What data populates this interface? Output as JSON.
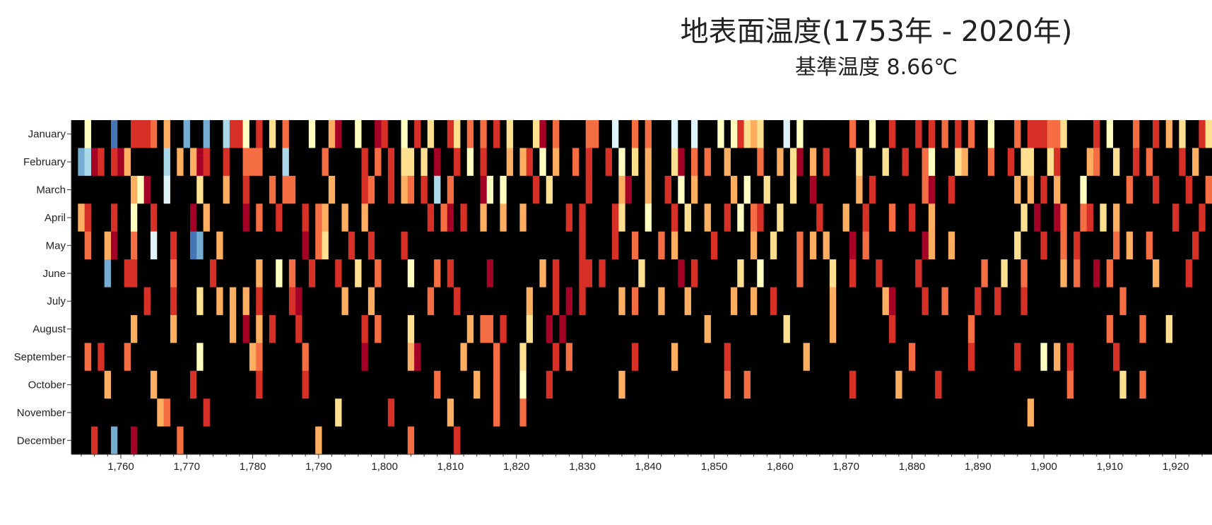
{
  "chart_data": {
    "type": "heatmap",
    "title": "地表面温度(1753年 - 2020年)",
    "subtitle": "基準温度 8.66℃",
    "x_start_year": 1753,
    "x_range": [
      1753,
      1925
    ],
    "x_ticks": [
      1760,
      1770,
      1780,
      1790,
      1800,
      1810,
      1820,
      1830,
      1840,
      1850,
      1860,
      1870,
      1880,
      1890,
      1900,
      1910,
      1920
    ],
    "x_tick_labels": [
      "1,760",
      "1,770",
      "1,780",
      "1,790",
      "1,800",
      "1,810",
      "1,820",
      "1,830",
      "1,840",
      "1,850",
      "1,860",
      "1,870",
      "1,880",
      "1,890",
      "1,900",
      "1,910",
      "1,920"
    ],
    "months": [
      "January",
      "February",
      "March",
      "April",
      "May",
      "June",
      "July",
      "August",
      "September",
      "October",
      "November",
      "December"
    ],
    "color_scale": [
      "#313695",
      "#4575b4",
      "#74add1",
      "#abd9e9",
      "#e0f3f8",
      "#ffffbf",
      "#fee090",
      "#fdae61",
      "#f46d43",
      "#d73027",
      "#a50026"
    ],
    "anomaly_rows": [
      "EE5EDD1CE9998D7ED2DC2FE3995E9E6F8EEF5DE7AFF5FEA9FE5E9D6DE96F8F8D9D6FEE6AE8EFBE88FC4EE8E8FEE4FE4FEE5E59676FED4E5EDDEFEE8EE5EE9DEF9F9F8E9F8EF5FEF8E999886FEFF9F5EFF8CD9D7F6EB96D6EE69F5FE59D7FF8E",
      "D23A9C9A7DBFDD3B7B7A9CB9EE888BCB3DCEBD8ECEDE9D8E9D66E6EAEE9E5E9CEE7D79E5F7DD8E9BE9D5D6E7DCF6AD8E8EE7EEBE8EE7F6AB7D9FDCE6BEE6FE9ED85EDD67DDE8EE9D66EE69FDED78FE6FE9E8EEFD9F7FF8D8EFE86EE7D",
      "DCCBFDBDB75ADD4BFCB6EBE7FE9FEC8E88FDEEB7FCBD98DC9F78E9C3F8FEEFA5F5FEDE9D6DFDDE9CFED7ACE7ED9F5D7DEEFF7D5DE6FFD6DFAECFCEB7F9EEEBBFF8AEE9FDDFFEFDD7D7F9F7EFD5DFFEBE8FFE9FFEF9DF8DEEEFF9EFEEA",
      "F79FDC9EE5CE9FEDBFAE7BFBDDAF8FF9CED9F87DF7FE7CFEBEFDFE9F8AF9BD7CF7DB7DBCFDE9E9FFED96DEF5EDE9F6EE7FE9D5F89EF6DFDFF9FEB7EE9FEF8DE9EF7FFCFDFEBFEFDD6EAFEA8FC89D6F7FCFDFEFF9EFF9F8A7DFF6AEE96",
      "FE8EB7ADD8EE4DC9EC12FD7DCBEEDCEDDFEAE86BCF9ED9DBFB9FFEBCEFFCCEFEEFEBFEEDCDEEF9FBDF9CE8EED8F7BFDCD9CDCEC7CD6BEF8E7D7BDEAE8DDFFCDEDA7FD7DEBEFEFEE6FBD9ED8C9FDFBD8D7DE8CEFFFF9DFFC8BEF9DEBF",
      "EECFF2EF99FBCBC8EEBBF9BEDCDF7DD5F8DE9CCF9FE6FF8DECF5EFE8F9EDEFCAECDBEEE7F9CEE99F9DDBEF6CFDFEAB9DEEEFE6BF5DCFED8BFDF6FF9ECF9FEEFD9DEEFBEEDE8EE6ED8BFFDF7F8DFAD8DBFEEE7EDDE9EFE69EFFFFDAEE",
      "FFFEFEFDEDB9FED9BFD6BE7D7E7E9DDFF9AEFFBEF7ECE7FBDDFCDE8DDD9FDDDFDCEDF7DBE9DAF9DEFEE7E8CCB7CFE7EEFEDF7EF7CE9DEBDBDDD7EEDCFED7ACDDF9ED8FFED9FE9EFD9EDDFFFCFFFDEBC8EBEDECCFEFEFEC8D8E9FDDEE",
      "EFEBDEFED7CDDEF7EEBEDDFD7EAD7C9DDE9FDFEFEFDF9F8EDDE6DFFEFDFB7F88D9EFE6EFAEAEEEEDFDFEFCFCEEFFDFEF7EECBFDEDFDD6CFEFEF7FFDFEDDE9EFEDEEFDFFE8FEFBFFEDEEEEDCEFDCFF8DEFE8FEF6DFDEDFF8DEE8C7FDD",
      "ED8F9EFE8EFDBCFEEBD5DFCBDDD78DEDEBD8DDBDEEEEAEEDBFF7AFDEDFF7DEBD8DFE6FEEF9E8FDEDCEDFD9DDBFC7EBFEFED9EBFCFEBEFBE7BFDECFEDDFBEFEE8EEBDFDEF9EFFFBD9EDF5F7F9FECBFE9FEFFFFDDFEEDCDCFDBFEE88EFFF",
      "FBCDF7FDDBEF7EBDEE9EBEFDDFCE9FDEDEE9EEFDCFDFFDFEDEDEEFE8DBCDF7DE8EEF5EDE9FDEDCDEFEC7CEFEFFCDEEDDCEE8FF8FFDDCFEFFDEDFDE9EDEFFF7EFEDF9FDEEDFDDFFFEEEFFDEF8FFEFEED6EE8DDEDEFCFFEFDDDDFE99FFBF",
      "DEFCBDFDEEDCD78DBCFD9CFFDDFDBDCEEDFBEDFE6FEDCFCF9DEEEFEEF7DFEFEE8FDD8EDEDFFEDDFEDDDFFCDEFEDDEFDFEFFEDBFDFEEFEFEDFBFFDFFDECDEDEEDDEFDDEFECFEEEFFDF7DFFDFFDFDEFEFFFFEEDFFFEDDEFFDCEFDCEEFDE",
      "DEB9FE2FEAEFFFDB8EEDFEFDEFEEEDFEFEFBE7FEEFEFDEEEFDE8BFFEFF9EFCEDDEFEEFDEFFFFDEDFFFEBFEDEEDCEEDFEFDEFEEFEFEDEDEFFFEDFDEFEEEEEFFDCEEDFEDFEEDFDDDEEDFEEFDFFFDDEEEDEFDFDDFEFEEEFEFEEEFFDDFFEDEE"
    ]
  }
}
